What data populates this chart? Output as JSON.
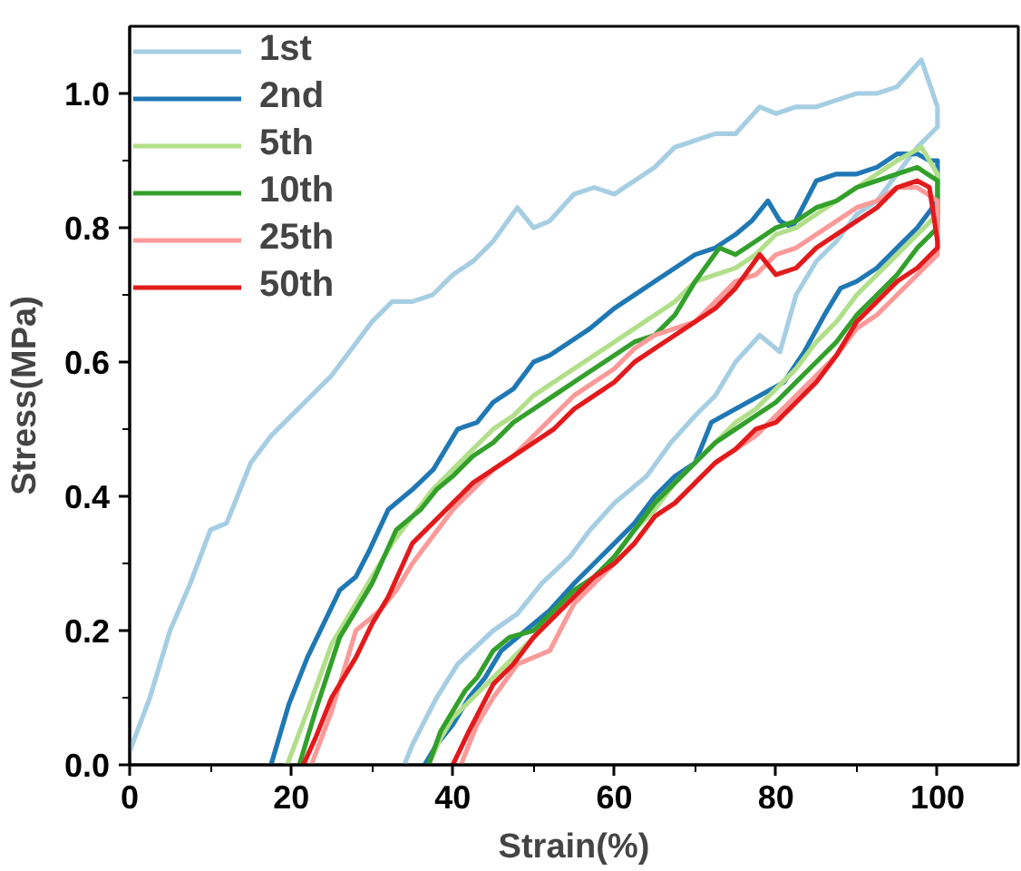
{
  "chart_data": {
    "type": "line",
    "xlabel": "Strain(%)",
    "ylabel": "Stress(MPa)",
    "xlim": [
      0,
      110
    ],
    "ylim": [
      0,
      1.1
    ],
    "xticks": [
      0,
      {
        "value": 10,
        "label": null
      },
      20,
      {
        "value": 30,
        "label": null
      },
      40,
      {
        "value": 50,
        "label": null
      },
      60,
      {
        "value": 70,
        "label": null
      },
      80,
      {
        "value": 90,
        "label": null
      },
      100
    ],
    "yticks": [
      {
        "value": 0,
        "label": "0.0"
      },
      {
        "value": 0.1,
        "label": null
      },
      {
        "value": 0.2,
        "label": "0.2"
      },
      {
        "value": 0.3,
        "label": null
      },
      {
        "value": 0.4,
        "label": "0.4"
      },
      {
        "value": 0.5,
        "label": null
      },
      {
        "value": 0.6,
        "label": "0.6"
      },
      {
        "value": 0.7,
        "label": null
      },
      {
        "value": 0.8,
        "label": "0.8"
      },
      {
        "value": 0.9,
        "label": null
      },
      {
        "value": 1.0,
        "label": "1.0"
      }
    ],
    "grid": false,
    "legend": "top left",
    "line_style": "solid",
    "marker": "none",
    "series": [
      {
        "name": "1st",
        "color": "#a6cee3",
        "x": [
          0,
          2.5,
          5,
          7.5,
          10,
          12,
          15,
          17.5,
          20,
          22.5,
          25,
          27.5,
          30,
          32.5,
          35,
          37.5,
          40,
          42.5,
          45,
          48,
          50,
          52,
          55,
          57.5,
          60,
          62.5,
          65,
          67.5,
          70,
          72.5,
          75,
          78,
          80,
          82.5,
          85,
          87.5,
          90,
          92.5,
          95,
          98,
          100,
          100,
          97.5,
          95,
          92.5,
          90,
          87.5,
          85,
          82.5,
          80.5,
          78,
          75,
          72.5,
          70,
          67,
          64,
          60,
          57,
          54.5,
          51,
          48,
          45,
          40.6,
          38,
          36.7,
          35,
          34
        ],
        "values": [
          0.02,
          0.1,
          0.2,
          0.27,
          0.35,
          0.36,
          0.45,
          0.49,
          0.52,
          0.55,
          0.58,
          0.62,
          0.66,
          0.69,
          0.69,
          0.7,
          0.73,
          0.75,
          0.78,
          0.83,
          0.8,
          0.81,
          0.85,
          0.86,
          0.85,
          0.87,
          0.89,
          0.92,
          0.93,
          0.94,
          0.94,
          0.98,
          0.97,
          0.98,
          0.98,
          0.99,
          1.0,
          1.0,
          1.01,
          1.05,
          0.98,
          0.95,
          0.92,
          0.88,
          0.84,
          0.82,
          0.78,
          0.75,
          0.7,
          0.615,
          0.64,
          0.6,
          0.55,
          0.52,
          0.48,
          0.43,
          0.39,
          0.35,
          0.31,
          0.27,
          0.225,
          0.2,
          0.15,
          0.1,
          0.07,
          0.03,
          0
        ]
      },
      {
        "name": "2nd",
        "color": "#1f78b4",
        "x": [
          17.5,
          19.7,
          22,
          24,
          26,
          28,
          29.7,
          32,
          35,
          37.6,
          40.6,
          43,
          45,
          47.5,
          50,
          52,
          54.5,
          57,
          60,
          62.5,
          65,
          67.5,
          70,
          72.5,
          75,
          77,
          79,
          80.5,
          82,
          85,
          87.5,
          90,
          92.5,
          95,
          97.5,
          99,
          100,
          100,
          97.5,
          95,
          92.5,
          90,
          88,
          86,
          83.5,
          81,
          78,
          75,
          72,
          70,
          67.5,
          65,
          62.5,
          60,
          57.5,
          55,
          52,
          49,
          46,
          44,
          42,
          40,
          38,
          36.5
        ],
        "values": [
          0,
          0.09,
          0.16,
          0.21,
          0.26,
          0.28,
          0.32,
          0.38,
          0.41,
          0.44,
          0.5,
          0.51,
          0.54,
          0.56,
          0.6,
          0.61,
          0.63,
          0.65,
          0.68,
          0.7,
          0.72,
          0.74,
          0.76,
          0.77,
          0.79,
          0.81,
          0.84,
          0.81,
          0.8,
          0.87,
          0.88,
          0.88,
          0.89,
          0.91,
          0.91,
          0.9,
          0.9,
          0.84,
          0.8,
          0.77,
          0.74,
          0.72,
          0.71,
          0.67,
          0.615,
          0.57,
          0.55,
          0.53,
          0.51,
          0.45,
          0.43,
          0.4,
          0.36,
          0.33,
          0.3,
          0.27,
          0.23,
          0.2,
          0.17,
          0.13,
          0.1,
          0.06,
          0.03,
          0
        ]
      },
      {
        "name": "5th",
        "color": "#b2df8a",
        "x": [
          19.5,
          22,
          25,
          27.5,
          30,
          32.5,
          35,
          37.5,
          40,
          42.5,
          45,
          47.5,
          50,
          52.5,
          55,
          57.5,
          60,
          62.5,
          65,
          67.5,
          70,
          72.5,
          75,
          77.5,
          80,
          82.5,
          85,
          87.5,
          90,
          92.5,
          95,
          98,
          100,
          100,
          97.5,
          95,
          92.5,
          90,
          87.5,
          85,
          82.5,
          80,
          77.5,
          75,
          72.5,
          70,
          67.5,
          65,
          62.5,
          60,
          57.5,
          55,
          52.5,
          50,
          47.5,
          45,
          42.5,
          40,
          38.5,
          37
        ],
        "values": [
          0,
          0.08,
          0.18,
          0.23,
          0.28,
          0.33,
          0.37,
          0.41,
          0.44,
          0.47,
          0.5,
          0.52,
          0.55,
          0.57,
          0.59,
          0.61,
          0.63,
          0.65,
          0.67,
          0.69,
          0.72,
          0.73,
          0.74,
          0.76,
          0.79,
          0.8,
          0.82,
          0.84,
          0.86,
          0.88,
          0.9,
          0.92,
          0.88,
          0.82,
          0.79,
          0.76,
          0.73,
          0.7,
          0.66,
          0.63,
          0.59,
          0.56,
          0.53,
          0.51,
          0.48,
          0.45,
          0.42,
          0.38,
          0.35,
          0.31,
          0.28,
          0.25,
          0.22,
          0.19,
          0.16,
          0.13,
          0.1,
          0.07,
          0.04,
          0
        ]
      },
      {
        "name": "10th",
        "color": "#33a02c",
        "x": [
          21,
          23,
          26,
          28,
          30,
          33,
          36,
          38,
          40,
          42.5,
          45,
          47.5,
          50,
          52.5,
          55,
          57.5,
          60,
          62.5,
          65,
          67.5,
          70,
          73,
          75,
          77.5,
          80,
          82.5,
          85,
          87.5,
          90,
          92.5,
          95,
          97.5,
          100,
          100,
          97.5,
          95,
          92.5,
          90,
          87.5,
          85,
          82.5,
          80,
          77.5,
          75,
          72.5,
          70,
          67.5,
          65,
          62.5,
          60,
          57.5,
          55,
          52.5,
          50,
          47,
          45,
          43,
          41.5,
          40,
          38.5,
          37
        ],
        "values": [
          0,
          0.08,
          0.19,
          0.23,
          0.27,
          0.35,
          0.38,
          0.41,
          0.43,
          0.46,
          0.48,
          0.51,
          0.53,
          0.55,
          0.57,
          0.59,
          0.61,
          0.63,
          0.64,
          0.67,
          0.72,
          0.77,
          0.76,
          0.78,
          0.8,
          0.81,
          0.83,
          0.84,
          0.86,
          0.87,
          0.88,
          0.89,
          0.87,
          0.8,
          0.77,
          0.73,
          0.7,
          0.67,
          0.63,
          0.6,
          0.57,
          0.54,
          0.52,
          0.5,
          0.48,
          0.45,
          0.42,
          0.39,
          0.35,
          0.31,
          0.28,
          0.26,
          0.23,
          0.2,
          0.19,
          0.17,
          0.13,
          0.11,
          0.08,
          0.05,
          0
        ]
      },
      {
        "name": "25th",
        "color": "#fb9a99",
        "x": [
          22.5,
          25,
          28,
          31,
          33,
          35,
          37.5,
          40,
          42.5,
          45,
          47.5,
          50,
          52.5,
          55,
          57.5,
          60,
          62.5,
          65,
          67.5,
          70,
          72.5,
          75,
          77.5,
          80,
          82.5,
          85,
          87.5,
          90,
          92.5,
          95,
          97.5,
          100,
          100,
          97.5,
          95,
          92.5,
          90,
          87.5,
          85,
          82.5,
          80,
          77.5,
          75,
          72.5,
          70,
          67.5,
          65,
          62.5,
          60,
          57.5,
          55,
          52,
          50,
          48,
          45,
          43,
          42,
          41
        ],
        "values": [
          0,
          0.08,
          0.2,
          0.23,
          0.26,
          0.3,
          0.34,
          0.38,
          0.41,
          0.44,
          0.46,
          0.49,
          0.52,
          0.55,
          0.57,
          0.59,
          0.62,
          0.64,
          0.65,
          0.66,
          0.69,
          0.72,
          0.73,
          0.76,
          0.77,
          0.79,
          0.81,
          0.83,
          0.84,
          0.86,
          0.86,
          0.84,
          0.76,
          0.73,
          0.7,
          0.67,
          0.65,
          0.61,
          0.58,
          0.55,
          0.52,
          0.49,
          0.47,
          0.45,
          0.42,
          0.39,
          0.37,
          0.33,
          0.3,
          0.27,
          0.24,
          0.17,
          0.16,
          0.15,
          0.1,
          0.06,
          0.03,
          0
        ]
      },
      {
        "name": "50th",
        "color": "#e31a1c",
        "x": [
          21.5,
          23,
          25,
          28,
          30,
          32,
          35,
          37.5,
          40,
          42.5,
          45,
          47.5,
          50,
          52.5,
          55,
          57.5,
          60,
          62.5,
          65,
          67.5,
          70,
          72.5,
          75,
          78,
          80,
          82.5,
          85,
          87.5,
          90,
          92.5,
          95,
          97.5,
          99,
          100,
          100,
          97.5,
          95,
          92.5,
          90,
          87.5,
          85,
          82.5,
          80,
          77.5,
          75,
          72.5,
          70,
          67.5,
          65,
          62.5,
          60,
          57.5,
          55,
          52.5,
          50,
          47.5,
          45,
          42,
          40
        ],
        "values": [
          0,
          0.04,
          0.1,
          0.16,
          0.21,
          0.25,
          0.33,
          0.36,
          0.39,
          0.42,
          0.44,
          0.46,
          0.48,
          0.5,
          0.53,
          0.55,
          0.57,
          0.6,
          0.62,
          0.64,
          0.66,
          0.68,
          0.71,
          0.76,
          0.73,
          0.74,
          0.77,
          0.79,
          0.81,
          0.83,
          0.86,
          0.87,
          0.86,
          0.78,
          0.77,
          0.74,
          0.72,
          0.69,
          0.66,
          0.61,
          0.57,
          0.54,
          0.51,
          0.5,
          0.47,
          0.45,
          0.42,
          0.39,
          0.37,
          0.33,
          0.3,
          0.28,
          0.25,
          0.22,
          0.19,
          0.15,
          0.12,
          0.05,
          0
        ]
      }
    ]
  }
}
